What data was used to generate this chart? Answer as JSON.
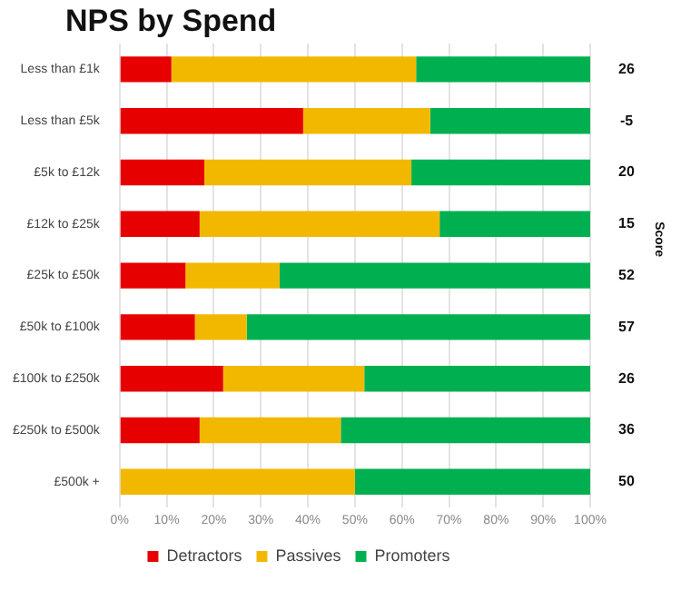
{
  "chart_data": {
    "type": "bar",
    "orientation": "horizontal",
    "stacked": true,
    "title": "NPS by Spend",
    "y2label": "Score",
    "categories": [
      "Less than £1k",
      "Less than £5k",
      "£5k to £12k",
      "£12k to £25k",
      "£25k to £50k",
      "£50k to £100k",
      "£100k to £250k",
      "£250k to £500k",
      "£500k +"
    ],
    "series": [
      {
        "name": "Detractors",
        "color": "#e60000",
        "values": [
          11,
          39,
          18,
          17,
          14,
          16,
          22,
          17,
          0
        ]
      },
      {
        "name": "Passives",
        "color": "#f2b800",
        "values": [
          52,
          27,
          44,
          51,
          20,
          11,
          30,
          30,
          50
        ]
      },
      {
        "name": "Promoters",
        "color": "#00b050",
        "values": [
          37,
          34,
          38,
          32,
          66,
          73,
          48,
          53,
          50
        ]
      }
    ],
    "xlim": [
      0,
      100
    ],
    "xticks": [
      {
        "value": 0,
        "label": "0%"
      },
      {
        "value": 10,
        "label": "10%"
      },
      {
        "value": 20,
        "label": "20%"
      },
      {
        "value": 30,
        "label": "30%"
      },
      {
        "value": 40,
        "label": "40%"
      },
      {
        "value": 50,
        "label": "50%"
      },
      {
        "value": 60,
        "label": "60%"
      },
      {
        "value": 70,
        "label": "70%"
      },
      {
        "value": 80,
        "label": "80%"
      },
      {
        "value": 90,
        "label": "90%"
      },
      {
        "value": 100,
        "label": "100%"
      }
    ],
    "grid": "x",
    "legend": "bottom",
    "annotations": [
      "26",
      "-5",
      "20",
      "15",
      "52",
      "57",
      "26",
      "36",
      "50"
    ]
  }
}
